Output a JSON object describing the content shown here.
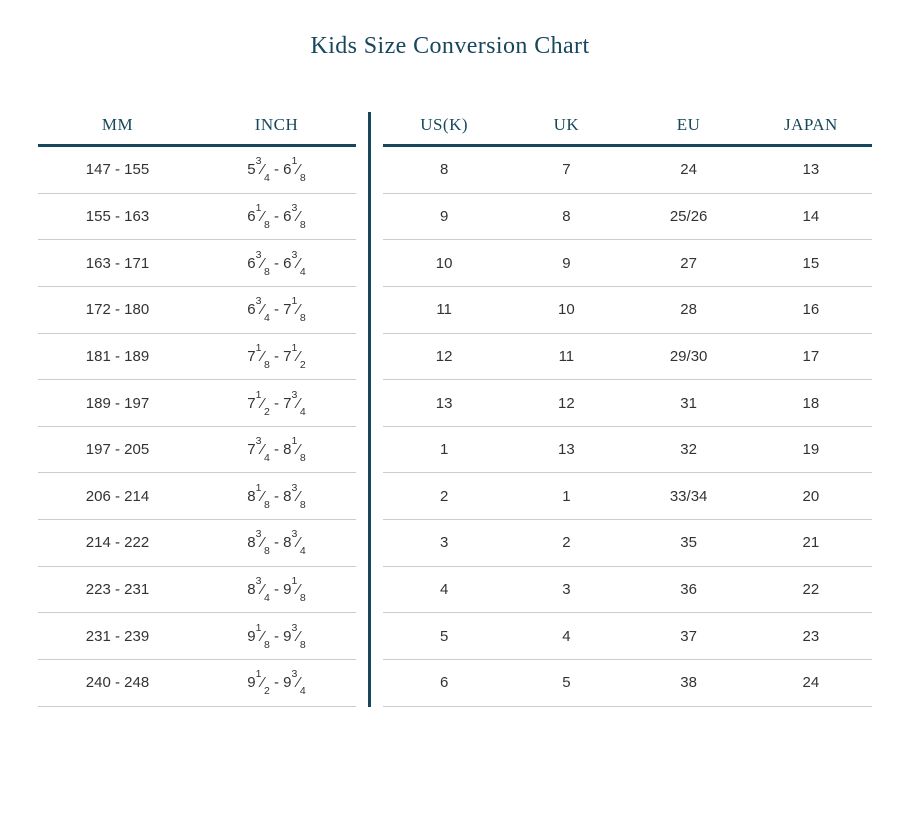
{
  "title": "Kids Size Conversion Chart",
  "styles": {
    "accent": "#17475c",
    "row_line": "#cccccc",
    "text_color": "#333333",
    "background": "#ffffff"
  },
  "chart_data": {
    "type": "table",
    "title": "Kids Size Conversion Chart",
    "left_columns": [
      "MM",
      "INCH"
    ],
    "right_columns": [
      "US(K)",
      "UK",
      "EU",
      "JAPAN"
    ],
    "range_separator": "-",
    "fraction_slash": "⁄",
    "rows": [
      {
        "mm": "147 - 155",
        "inch_from": {
          "whole": "5",
          "num": "3",
          "den": "4"
        },
        "inch_to": {
          "whole": "6",
          "num": "1",
          "den": "8"
        },
        "us_k": "8",
        "uk": "7",
        "eu": "24",
        "japan": "13"
      },
      {
        "mm": "155 - 163",
        "inch_from": {
          "whole": "6",
          "num": "1",
          "den": "8"
        },
        "inch_to": {
          "whole": "6",
          "num": "3",
          "den": "8"
        },
        "us_k": "9",
        "uk": "8",
        "eu": "25/26",
        "japan": "14"
      },
      {
        "mm": "163 - 171",
        "inch_from": {
          "whole": "6",
          "num": "3",
          "den": "8"
        },
        "inch_to": {
          "whole": "6",
          "num": "3",
          "den": "4"
        },
        "us_k": "10",
        "uk": "9",
        "eu": "27",
        "japan": "15"
      },
      {
        "mm": "172 - 180",
        "inch_from": {
          "whole": "6",
          "num": "3",
          "den": "4"
        },
        "inch_to": {
          "whole": "7",
          "num": "1",
          "den": "8"
        },
        "us_k": "11",
        "uk": "10",
        "eu": "28",
        "japan": "16"
      },
      {
        "mm": "181 - 189",
        "inch_from": {
          "whole": "7",
          "num": "1",
          "den": "8"
        },
        "inch_to": {
          "whole": "7",
          "num": "1",
          "den": "2"
        },
        "us_k": "12",
        "uk": "11",
        "eu": "29/30",
        "japan": "17"
      },
      {
        "mm": "189 - 197",
        "inch_from": {
          "whole": "7",
          "num": "1",
          "den": "2"
        },
        "inch_to": {
          "whole": "7",
          "num": "3",
          "den": "4"
        },
        "us_k": "13",
        "uk": "12",
        "eu": "31",
        "japan": "18"
      },
      {
        "mm": "197 - 205",
        "inch_from": {
          "whole": "7",
          "num": "3",
          "den": "4"
        },
        "inch_to": {
          "whole": "8",
          "num": "1",
          "den": "8"
        },
        "us_k": "1",
        "uk": "13",
        "eu": "32",
        "japan": "19"
      },
      {
        "mm": "206 - 214",
        "inch_from": {
          "whole": "8",
          "num": "1",
          "den": "8"
        },
        "inch_to": {
          "whole": "8",
          "num": "3",
          "den": "8"
        },
        "us_k": "2",
        "uk": "1",
        "eu": "33/34",
        "japan": "20"
      },
      {
        "mm": "214 - 222",
        "inch_from": {
          "whole": "8",
          "num": "3",
          "den": "8"
        },
        "inch_to": {
          "whole": "8",
          "num": "3",
          "den": "4"
        },
        "us_k": "3",
        "uk": "2",
        "eu": "35",
        "japan": "21"
      },
      {
        "mm": "223 - 231",
        "inch_from": {
          "whole": "8",
          "num": "3",
          "den": "4"
        },
        "inch_to": {
          "whole": "9",
          "num": "1",
          "den": "8"
        },
        "us_k": "4",
        "uk": "3",
        "eu": "36",
        "japan": "22"
      },
      {
        "mm": "231 - 239",
        "inch_from": {
          "whole": "9",
          "num": "1",
          "den": "8"
        },
        "inch_to": {
          "whole": "9",
          "num": "3",
          "den": "8"
        },
        "us_k": "5",
        "uk": "4",
        "eu": "37",
        "japan": "23"
      },
      {
        "mm": "240 - 248",
        "inch_from": {
          "whole": "9",
          "num": "1",
          "den": "2"
        },
        "inch_to": {
          "whole": "9",
          "num": "3",
          "den": "4"
        },
        "us_k": "6",
        "uk": "5",
        "eu": "38",
        "japan": "24"
      }
    ]
  }
}
